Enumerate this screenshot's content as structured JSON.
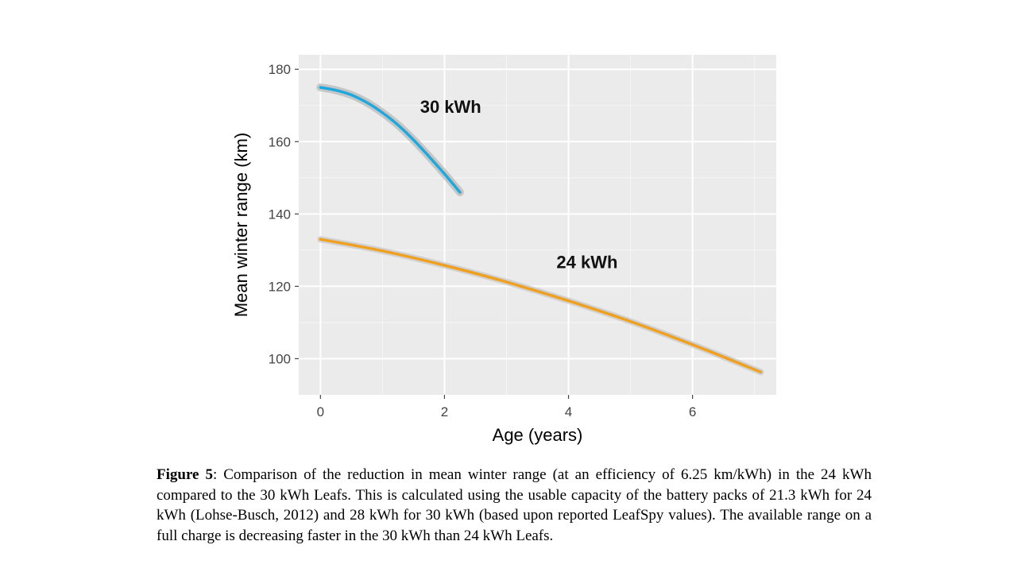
{
  "chart_data": {
    "type": "line",
    "xlabel": "Age (years)",
    "ylabel": "Mean winter range (km)",
    "xlim": [
      -0.35,
      7.35
    ],
    "ylim": [
      90,
      184
    ],
    "x_ticks": [
      0,
      2,
      4,
      6
    ],
    "y_ticks": [
      100,
      120,
      140,
      160,
      180
    ],
    "grid": true,
    "series": [
      {
        "name": "30 kWh",
        "color": "#1fa8dd",
        "band_color": "#b9b9b9",
        "x": [
          0,
          0.25,
          0.5,
          0.75,
          1.0,
          1.25,
          1.5,
          1.75,
          2.0,
          2.25
        ],
        "y": [
          175,
          174.2,
          172.9,
          170.8,
          168,
          164.6,
          160.5,
          155.9,
          151.1,
          146
        ]
      },
      {
        "name": "24 kWh",
        "color": "#f0a020",
        "band_color": "#c8c8c8",
        "x": [
          0,
          1,
          2,
          3,
          4,
          5,
          6,
          7.1
        ],
        "y": [
          133,
          129.8,
          125.8,
          121.2,
          116,
          110.3,
          103.9,
          96.3
        ]
      }
    ],
    "annotations": [
      {
        "text": "30 kWh",
        "x": 2.1,
        "y": 168
      },
      {
        "text": "24 kWh",
        "x": 4.3,
        "y": 125
      }
    ]
  },
  "caption": {
    "label": "Figure 5",
    "text": ": Comparison of the reduction in mean winter range (at an efficiency of 6.25 km/kWh) in the 24 kWh compared to the 30 kWh Leafs.  This is calculated using the usable capacity of the battery packs of 21.3 kWh for 24 kWh (Lohse-Busch, 2012) and 28 kWh for 30 kWh (based upon reported LeafSpy values).  The available range on a full charge is decreasing faster in the 30 kWh than 24 kWh Leafs."
  }
}
